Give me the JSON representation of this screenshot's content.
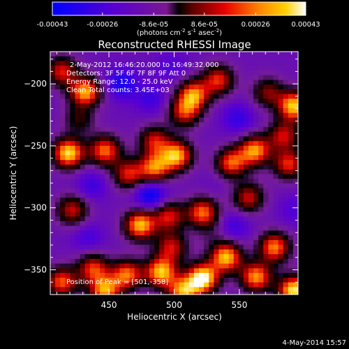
{
  "chart_data": {
    "type": "heatmap",
    "title": "Reconstructed RHESSI Image",
    "xlabel": "Heliocentric X (arcsec)",
    "ylabel": "Heliocentric Y (arcsec)",
    "xlim": [
      405,
      595
    ],
    "ylim": [
      -370,
      -174
    ],
    "x_ticks": [
      450,
      500,
      550
    ],
    "y_ticks": [
      -200,
      -250,
      -300,
      -350
    ],
    "colorbar": {
      "ticks": [
        "-0.00043",
        "-0.00026",
        "-8.6e-05",
        "8.6e-05",
        "0.00026",
        "0.00043"
      ],
      "label_main": "(photons cm",
      "label_sup1": "-2",
      "label_mid1": " s",
      "label_sup2": "-1",
      "label_mid2": " asec",
      "label_sup3": "-2",
      "label_end": ")",
      "range": [
        -0.00043,
        0.00043
      ]
    },
    "annotations": {
      "time_range": "2-May-2012 16:46:20.000 to 16:49:32.000",
      "detectors": "Detectors: 3F 5F 6F 7F 8F 9F  Att 0",
      "energy_range": "Energy Range: 12.0 - 25.0 keV",
      "clean_counts": "Clean    Total counts: 3.45E+03",
      "peak": "Position of Peak = [501,-358]"
    },
    "blobs": [
      {
        "x": 412,
        "y": -188,
        "value": 0.00018
      },
      {
        "x": 430,
        "y": -205,
        "value": 0.00034
      },
      {
        "x": 426,
        "y": -225,
        "value": 0.00012
      },
      {
        "x": 417,
        "y": -254,
        "value": 0.00038
      },
      {
        "x": 445,
        "y": -252,
        "value": 0.00026
      },
      {
        "x": 483,
        "y": -244,
        "value": 0.00016
      },
      {
        "x": 500,
        "y": -256,
        "value": 0.00033
      },
      {
        "x": 483,
        "y": -266,
        "value": 0.00026
      },
      {
        "x": 463,
        "y": -271,
        "value": 0.00018
      },
      {
        "x": 513,
        "y": -207,
        "value": 0.00028
      },
      {
        "x": 506,
        "y": -221,
        "value": 0.00018
      },
      {
        "x": 532,
        "y": -195,
        "value": 0.0002
      },
      {
        "x": 570,
        "y": -205,
        "value": 0.0001
      },
      {
        "x": 590,
        "y": -216,
        "value": 0.00036
      },
      {
        "x": 582,
        "y": -240,
        "value": 0.00016
      },
      {
        "x": 560,
        "y": -252,
        "value": 0.0003
      },
      {
        "x": 542,
        "y": -262,
        "value": 0.00024
      },
      {
        "x": 555,
        "y": -290,
        "value": 0.00016
      },
      {
        "x": 586,
        "y": -263,
        "value": 0.0002
      },
      {
        "x": 420,
        "y": -300,
        "value": 0.00016
      },
      {
        "x": 472,
        "y": -312,
        "value": 0.00034
      },
      {
        "x": 494,
        "y": -305,
        "value": 0.00018
      },
      {
        "x": 520,
        "y": -302,
        "value": 0.00026
      },
      {
        "x": 496,
        "y": -330,
        "value": 0.00016
      },
      {
        "x": 488,
        "y": -350,
        "value": 0.00034
      },
      {
        "x": 520,
        "y": -355,
        "value": 0.00043
      },
      {
        "x": 538,
        "y": -338,
        "value": 0.00034
      },
      {
        "x": 575,
        "y": -330,
        "value": 0.00028
      },
      {
        "x": 561,
        "y": -354,
        "value": 0.0003
      },
      {
        "x": 590,
        "y": -365,
        "value": 0.0004
      },
      {
        "x": 462,
        "y": -352,
        "value": 0.00026
      },
      {
        "x": 436,
        "y": -347,
        "value": 0.0002
      },
      {
        "x": 412,
        "y": -358,
        "value": 0.00024
      },
      {
        "x": 445,
        "y": -365,
        "value": 0.0003
      },
      {
        "x": 505,
        "y": -366,
        "value": 0.0003
      },
      {
        "x": 428,
        "y": -220,
        "value": -0.0003
      },
      {
        "x": 458,
        "y": -198,
        "value": -0.00038
      },
      {
        "x": 480,
        "y": -210,
        "value": -0.0003
      },
      {
        "x": 496,
        "y": -184,
        "value": -0.00026
      },
      {
        "x": 547,
        "y": -226,
        "value": -0.00032
      },
      {
        "x": 435,
        "y": -280,
        "value": -0.0003
      },
      {
        "x": 480,
        "y": -288,
        "value": -0.00043
      },
      {
        "x": 530,
        "y": -280,
        "value": -0.0002
      },
      {
        "x": 544,
        "y": -313,
        "value": -0.0003
      },
      {
        "x": 590,
        "y": -300,
        "value": -0.00026
      },
      {
        "x": 432,
        "y": -322,
        "value": -0.00028
      },
      {
        "x": 527,
        "y": -320,
        "value": -0.0001
      }
    ]
  },
  "footer_date": "4-May-2014 15:57"
}
